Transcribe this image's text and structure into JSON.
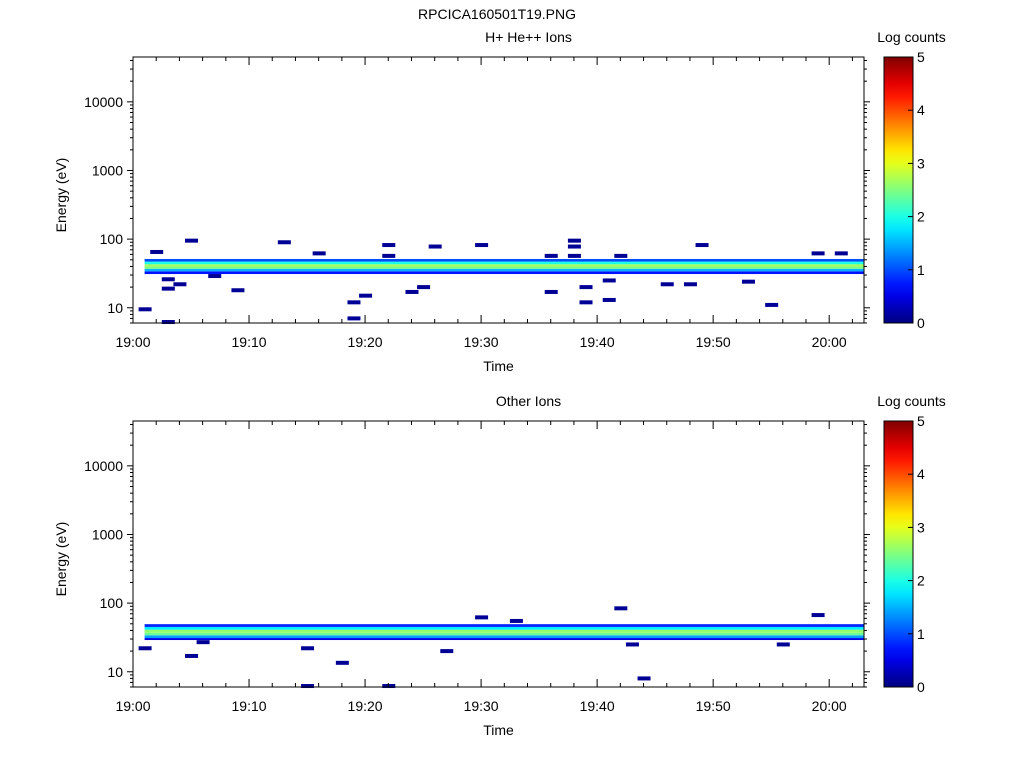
{
  "figure_title": "RPCICA160501T19.PNG",
  "chart_data": [
    {
      "type": "heatmap",
      "title": "H+ He++ Ions",
      "xlabel": "Time",
      "ylabel": "Energy (eV)",
      "x_scale": "time",
      "y_scale": "log",
      "xlim": [
        "19:00",
        "20:03"
      ],
      "ylim": [
        6,
        45000
      ],
      "x_ticks": [
        "19:00",
        "19:10",
        "19:20",
        "19:30",
        "19:40",
        "19:50",
        "20:00"
      ],
      "y_ticks": [
        {
          "value": 10,
          "label": "10"
        },
        {
          "value": 100,
          "label": "100"
        },
        {
          "value": 1000,
          "label": "1000"
        },
        {
          "value": 10000,
          "label": "10000"
        }
      ],
      "colorbar": {
        "label": "Log counts",
        "range": [
          0,
          5
        ],
        "ticks": [
          "0",
          "1",
          "2",
          "3",
          "4",
          "5"
        ],
        "colormap": "jet"
      },
      "time_range": [
        "19:01",
        "20:03"
      ],
      "energy_bins_eV": [
        31,
        34,
        37,
        40,
        43,
        47
      ],
      "band_log_counts": [
        0.7,
        1.5,
        2.5,
        2.7,
        2.0,
        1.0
      ],
      "sparse_points": [
        {
          "t": "19:01",
          "e": 9.5,
          "v": 0.1
        },
        {
          "t": "19:03",
          "e": 6.2,
          "v": 0.1
        },
        {
          "t": "19:02",
          "e": 65,
          "v": 0.1
        },
        {
          "t": "19:03",
          "e": 26,
          "v": 0.1
        },
        {
          "t": "19:03",
          "e": 19,
          "v": 0.1
        },
        {
          "t": "19:04",
          "e": 22,
          "v": 0.1
        },
        {
          "t": "19:05",
          "e": 95,
          "v": 0.1
        },
        {
          "t": "19:07",
          "e": 29,
          "v": 0.1
        },
        {
          "t": "19:09",
          "e": 18,
          "v": 0.1
        },
        {
          "t": "19:13",
          "e": 90,
          "v": 0.1
        },
        {
          "t": "19:16",
          "e": 62,
          "v": 0.1
        },
        {
          "t": "19:19",
          "e": 12,
          "v": 0.1
        },
        {
          "t": "19:19",
          "e": 7,
          "v": 0.1
        },
        {
          "t": "19:20",
          "e": 15,
          "v": 0.1
        },
        {
          "t": "19:22",
          "e": 82,
          "v": 0.1
        },
        {
          "t": "19:22",
          "e": 57,
          "v": 0.1
        },
        {
          "t": "19:24",
          "e": 17,
          "v": 0.1
        },
        {
          "t": "19:25",
          "e": 20,
          "v": 0.1
        },
        {
          "t": "19:26",
          "e": 78,
          "v": 0.1
        },
        {
          "t": "19:30",
          "e": 82,
          "v": 0.1
        },
        {
          "t": "19:36",
          "e": 17,
          "v": 0.1
        },
        {
          "t": "19:36",
          "e": 57,
          "v": 0.1
        },
        {
          "t": "19:38",
          "e": 95,
          "v": 0.1
        },
        {
          "t": "19:38",
          "e": 78,
          "v": 0.1
        },
        {
          "t": "19:38",
          "e": 57,
          "v": 0.1
        },
        {
          "t": "19:39",
          "e": 20,
          "v": 0.1
        },
        {
          "t": "19:39",
          "e": 12,
          "v": 0.1
        },
        {
          "t": "19:41",
          "e": 13,
          "v": 0.1
        },
        {
          "t": "19:41",
          "e": 25,
          "v": 0.1
        },
        {
          "t": "19:42",
          "e": 57,
          "v": 0.1
        },
        {
          "t": "19:46",
          "e": 22,
          "v": 0.1
        },
        {
          "t": "19:48",
          "e": 22,
          "v": 0.1
        },
        {
          "t": "19:49",
          "e": 82,
          "v": 0.1
        },
        {
          "t": "19:53",
          "e": 24,
          "v": 0.1
        },
        {
          "t": "19:55",
          "e": 11,
          "v": 0.1
        },
        {
          "t": "19:59",
          "e": 62,
          "v": 0.1
        },
        {
          "t": "20:01",
          "e": 62,
          "v": 0.1
        }
      ]
    },
    {
      "type": "heatmap",
      "title": "Other Ions",
      "xlabel": "Time",
      "ylabel": "Energy (eV)",
      "x_scale": "time",
      "y_scale": "log",
      "xlim": [
        "19:00",
        "20:03"
      ],
      "ylim": [
        6,
        45000
      ],
      "x_ticks": [
        "19:00",
        "19:10",
        "19:20",
        "19:30",
        "19:40",
        "19:50",
        "20:00"
      ],
      "y_ticks": [
        {
          "value": 10,
          "label": "10"
        },
        {
          "value": 100,
          "label": "100"
        },
        {
          "value": 1000,
          "label": "1000"
        },
        {
          "value": 10000,
          "label": "10000"
        }
      ],
      "colorbar": {
        "label": "Log counts",
        "range": [
          0,
          5
        ],
        "ticks": [
          "0",
          "1",
          "2",
          "3",
          "4",
          "5"
        ],
        "colormap": "jet"
      },
      "time_range": [
        "19:01",
        "20:03"
      ],
      "energy_bins_eV": [
        29,
        31,
        34,
        37,
        41,
        45
      ],
      "band_log_counts": [
        0.5,
        1.4,
        2.4,
        2.6,
        1.8,
        0.8
      ],
      "sparse_points": [
        {
          "t": "19:01",
          "e": 22,
          "v": 0.1
        },
        {
          "t": "19:05",
          "e": 17,
          "v": 0.1
        },
        {
          "t": "19:06",
          "e": 27,
          "v": 0.1
        },
        {
          "t": "19:15",
          "e": 22,
          "v": 0.1
        },
        {
          "t": "19:15",
          "e": 6.2,
          "v": 0.1
        },
        {
          "t": "19:18",
          "e": 13.5,
          "v": 0.1
        },
        {
          "t": "19:22",
          "e": 6.2,
          "v": 0.1
        },
        {
          "t": "19:27",
          "e": 20,
          "v": 0.1
        },
        {
          "t": "19:30",
          "e": 62,
          "v": 0.1
        },
        {
          "t": "19:33",
          "e": 55,
          "v": 0.1
        },
        {
          "t": "19:42",
          "e": 84,
          "v": 0.1
        },
        {
          "t": "19:43",
          "e": 25,
          "v": 0.1
        },
        {
          "t": "19:44",
          "e": 8,
          "v": 0.1
        },
        {
          "t": "19:56",
          "e": 25,
          "v": 0.1
        },
        {
          "t": "19:59",
          "e": 67,
          "v": 0.1
        }
      ]
    }
  ]
}
